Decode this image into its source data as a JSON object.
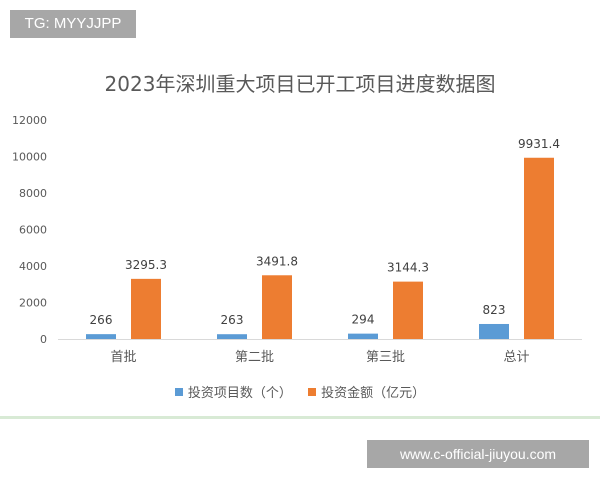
{
  "watermark_top": "TG: MYYJJPP",
  "watermark_bottom": "www.c-official-jiuyou.com",
  "colors": {
    "series_count": "#5b9bd5",
    "series_amount": "#ed7d31",
    "axis": "#d9d9d9",
    "text": "#595959"
  },
  "chart_data": {
    "type": "bar",
    "title": "2023年深圳重大项目已开工项目进度数据图",
    "categories": [
      "首批",
      "第二批",
      "第三批",
      "总计"
    ],
    "series": [
      {
        "name": "投资项目数（个）",
        "values": [
          266,
          263,
          294,
          823
        ],
        "labels": [
          "266",
          "263",
          "294",
          "823"
        ]
      },
      {
        "name": "投资金额（亿元）",
        "values": [
          3295.3,
          3491.8,
          3144.3,
          9931.4
        ],
        "labels": [
          "3295.3",
          "3491.8",
          "3144.3",
          "9931.4"
        ]
      }
    ],
    "ylim": [
      0,
      12000
    ],
    "yticks": [
      "0",
      "2000",
      "4000",
      "6000",
      "8000",
      "10000",
      "12000"
    ],
    "ytick_values": [
      0,
      2000,
      4000,
      6000,
      8000,
      10000,
      12000
    ],
    "gridlines": false,
    "legend_position": "bottom"
  }
}
